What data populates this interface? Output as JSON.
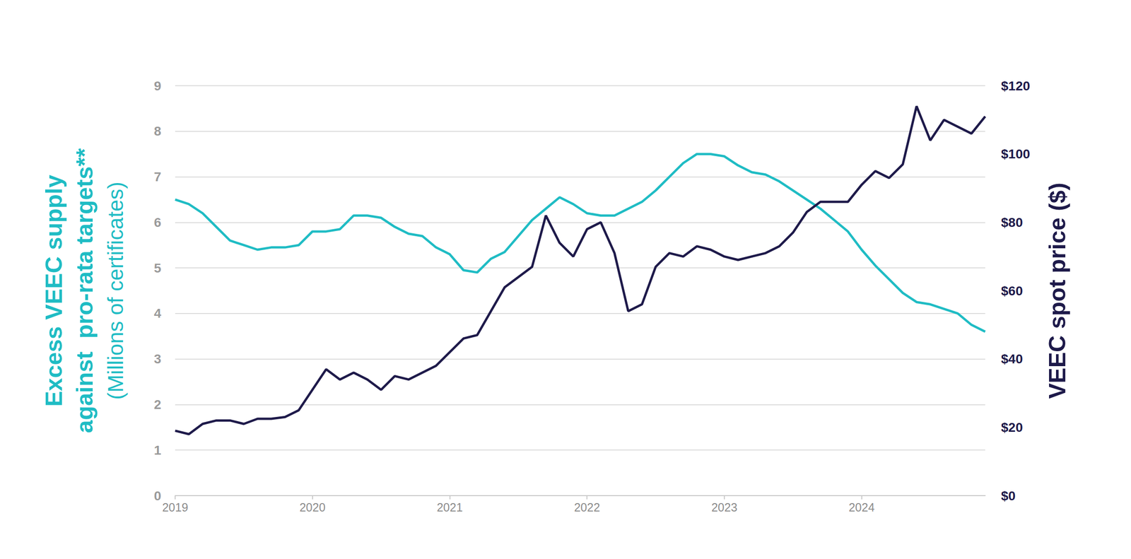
{
  "chart_data": {
    "type": "line",
    "ylabel": "Excess VEEC supply\nagainst  pro-rata targets**",
    "ylabel_units": "(Millions of certificates)",
    "y2label": "VEEC spot price ($)",
    "x": [
      2019.0,
      2019.1,
      2019.2,
      2019.3,
      2019.4,
      2019.5,
      2019.6,
      2019.7,
      2019.8,
      2019.9,
      2020.0,
      2020.1,
      2020.2,
      2020.3,
      2020.4,
      2020.5,
      2020.6,
      2020.7,
      2020.8,
      2020.9,
      2021.0,
      2021.1,
      2021.2,
      2021.3,
      2021.4,
      2021.5,
      2021.6,
      2021.7,
      2021.8,
      2021.9,
      2022.0,
      2022.1,
      2022.2,
      2022.3,
      2022.4,
      2022.5,
      2022.6,
      2022.7,
      2022.8,
      2022.9,
      2023.0,
      2023.1,
      2023.2,
      2023.3,
      2023.4,
      2023.5,
      2023.6,
      2023.7,
      2023.8,
      2023.9,
      2024.0,
      2024.1,
      2024.2,
      2024.3,
      2024.4,
      2024.5,
      2024.6,
      2024.7,
      2024.8,
      2024.9
    ],
    "xlim": [
      2019,
      2024.9
    ],
    "xticks": [
      2019,
      2020,
      2021,
      2022,
      2023,
      2024
    ],
    "ylim": [
      0,
      9
    ],
    "yticks": [
      0,
      1,
      2,
      3,
      4,
      5,
      6,
      7,
      8,
      9
    ],
    "y2lim": [
      0,
      120
    ],
    "y2ticks": [
      {
        "value": 0,
        "label": "$0"
      },
      {
        "value": 20,
        "label": "$20"
      },
      {
        "value": 40,
        "label": "$40"
      },
      {
        "value": 60,
        "label": "$60"
      },
      {
        "value": 80,
        "label": "$80"
      },
      {
        "value": 100,
        "label": "$100"
      },
      {
        "value": 120,
        "label": "$120"
      }
    ],
    "grid": true,
    "series": [
      {
        "name": "Excess VEEC supply",
        "color": "#1fbcc4",
        "values": [
          6.5,
          6.4,
          6.2,
          5.9,
          5.6,
          5.5,
          5.4,
          5.45,
          5.45,
          5.5,
          5.8,
          5.8,
          5.85,
          6.15,
          6.15,
          6.1,
          5.9,
          5.75,
          5.7,
          5.45,
          5.3,
          4.95,
          4.9,
          5.2,
          5.35,
          5.7,
          6.05,
          6.3,
          6.55,
          6.4,
          6.2,
          6.15,
          6.15,
          6.3,
          6.45,
          6.7,
          7.0,
          7.3,
          7.5,
          7.5,
          7.45,
          7.25,
          7.1,
          7.05,
          6.9,
          6.7,
          6.5,
          6.3,
          6.05,
          5.8,
          5.4,
          5.05,
          4.75,
          4.45,
          4.25,
          4.2,
          4.1,
          4.0,
          3.75,
          3.6
        ]
      },
      {
        "name": "VEEC spot price",
        "color": "#1e1a4a",
        "axis": "y2",
        "values": [
          19,
          18,
          21,
          22,
          22,
          21,
          22.5,
          22.5,
          23,
          25,
          31,
          37,
          34,
          36,
          34,
          31,
          35,
          34,
          36,
          38,
          42,
          46,
          47,
          54,
          61,
          64,
          67,
          82,
          74,
          70,
          78,
          80,
          71,
          54,
          56,
          67,
          71,
          70,
          73,
          72,
          70,
          69,
          70,
          71,
          73,
          77,
          83,
          86,
          86,
          86,
          91,
          95,
          93,
          97,
          114,
          104,
          110,
          108,
          106,
          111
        ]
      }
    ]
  }
}
